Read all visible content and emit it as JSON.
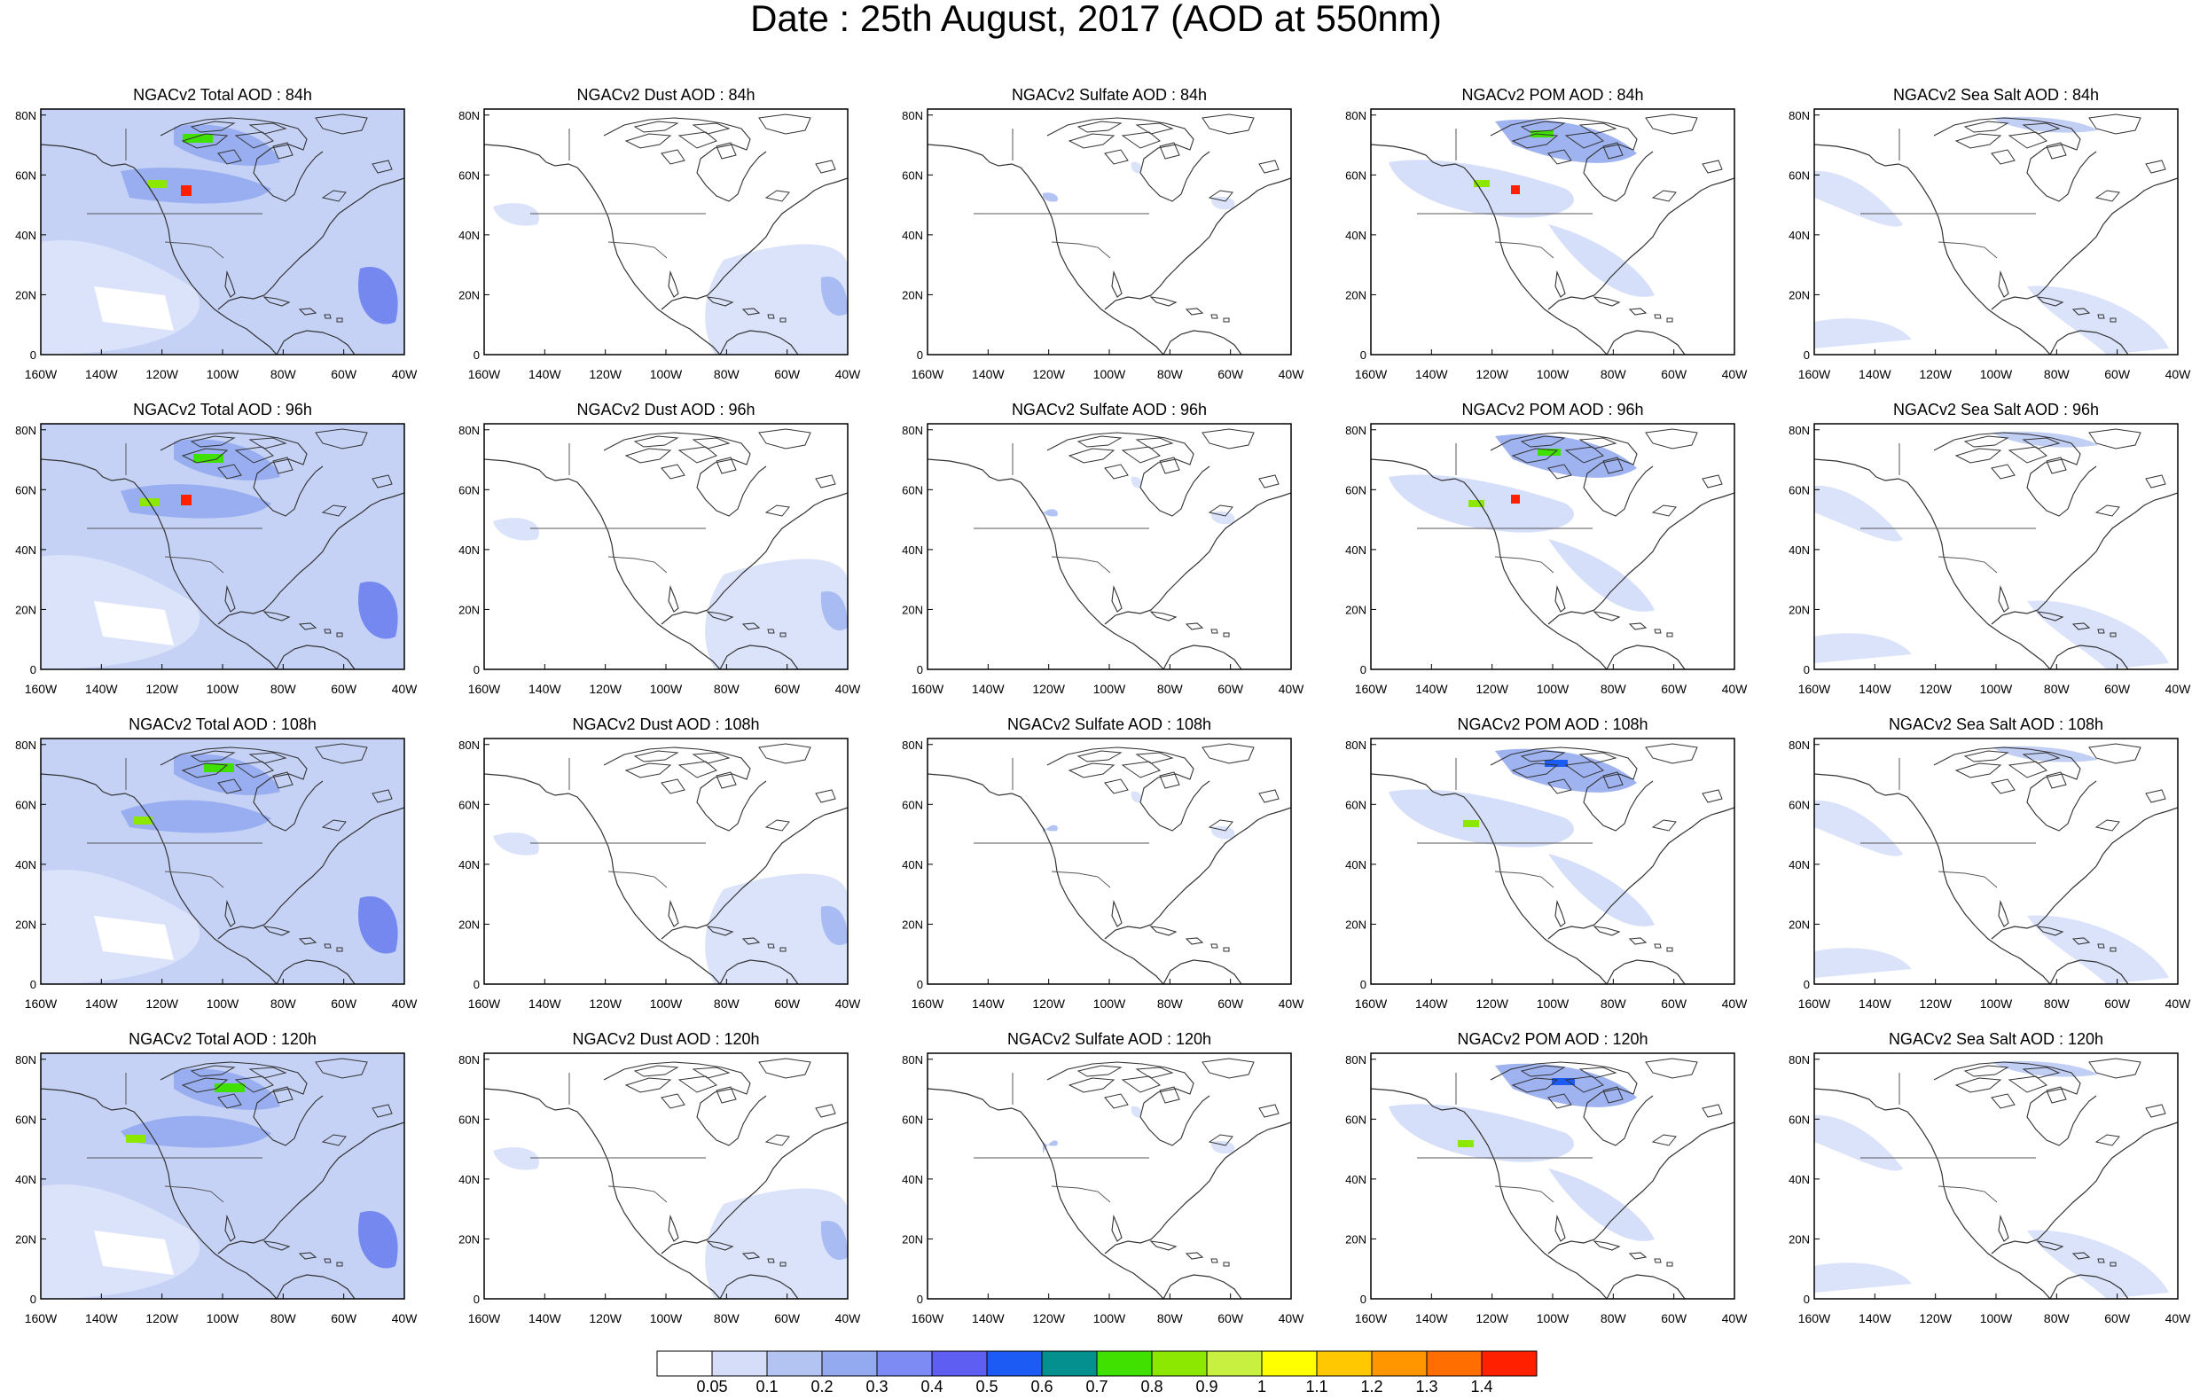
{
  "title": "Date : 25th August, 2017 (AOD at 550nm)",
  "panel_titles": [
    [
      "NGACv2 Total AOD : 84h",
      "NGACv2 Dust AOD : 84h",
      "NGACv2 Sulfate AOD : 84h",
      "NGACv2 POM AOD : 84h",
      "NGACv2 Sea Salt AOD : 84h"
    ],
    [
      "NGACv2 Total AOD : 96h",
      "NGACv2 Dust AOD : 96h",
      "NGACv2 Sulfate AOD : 96h",
      "NGACv2 POM AOD : 96h",
      "NGACv2 Sea Salt AOD : 96h"
    ],
    [
      "NGACv2 Total AOD : 108h",
      "NGACv2 Dust AOD : 108h",
      "NGACv2 Sulfate AOD : 108h",
      "NGACv2 POM AOD : 108h",
      "NGACv2 Sea Salt AOD : 108h"
    ],
    [
      "NGACv2 Total AOD : 120h",
      "NGACv2 Dust AOD : 120h",
      "NGACv2 Sulfate AOD : 120h",
      "NGACv2 POM AOD : 120h",
      "NGACv2 Sea Salt  AOD : 120h"
    ]
  ],
  "lat_ticks": [
    "0",
    "20N",
    "40N",
    "60N",
    "80N"
  ],
  "lon_ticks": [
    "160W",
    "140W",
    "120W",
    "100W",
    "80W",
    "60W",
    "40W"
  ],
  "colorbar": {
    "labels": [
      "0.05",
      "0.1",
      "0.2",
      "0.3",
      "0.4",
      "0.5",
      "0.6",
      "0.7",
      "0.8",
      "0.9",
      "1",
      "1.1",
      "1.2",
      "1.3",
      "1.4"
    ],
    "colors": [
      "#ffffff",
      "#d5ddf8",
      "#b4c4f2",
      "#94aaf0",
      "#7c8cf4",
      "#5e5ef2",
      "#1c5cf5",
      "#059090",
      "#40e000",
      "#8ce800",
      "#c8f040",
      "#ffff00",
      "#ffc800",
      "#ff9600",
      "#ff6e00",
      "#ff2000"
    ]
  },
  "field_styles": {
    "Total": {
      "base": "#c5d2f6",
      "light": "#dbe3fa",
      "mid": "#98aef0",
      "dark": "#7488f0"
    },
    "Dust": {
      "base": "#ffffff",
      "light": "#dbe3fa",
      "mid": "#a9bbf3",
      "dark": "#7c8cf4"
    },
    "Sulfate": {
      "base": "#ffffff",
      "light": "#dbe3fa",
      "mid": "#b4c4f2",
      "dark": "#94aaf0"
    },
    "POM": {
      "base": "#ffffff",
      "light": "#d6dff9",
      "mid": "#9fb3f1",
      "dark": "#6f80f2"
    },
    "Sea Salt": {
      "base": "#ffffff",
      "light": "#dbe3fa",
      "mid": "#c2cff5",
      "dark": "#a9bbf3"
    }
  }
}
